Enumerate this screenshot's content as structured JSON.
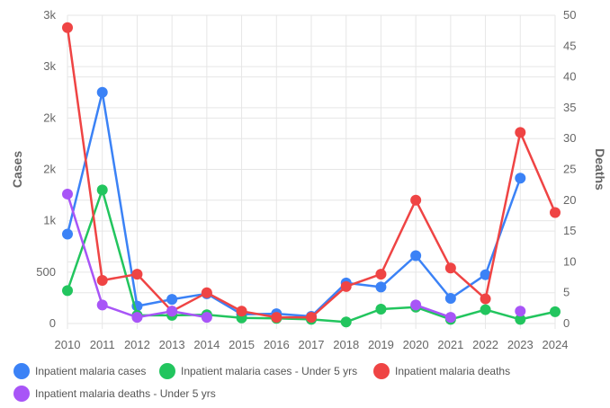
{
  "chart_data": {
    "type": "line",
    "x": [
      "2010",
      "2011",
      "2012",
      "2013",
      "2014",
      "2015",
      "2016",
      "2017",
      "2018",
      "2019",
      "2020",
      "2021",
      "2022",
      "2023",
      "2024"
    ],
    "y_left": {
      "label": "Cases",
      "ylim": [
        0,
        3000
      ],
      "tick_values": [
        0,
        500,
        1000,
        1500,
        2000,
        2500,
        3000
      ],
      "tick_labels": [
        "0",
        "500",
        "1k",
        "2k",
        "2k",
        "3k",
        "3k"
      ]
    },
    "y_right": {
      "label": "Deaths",
      "ylim": [
        0,
        50
      ],
      "tick_values": [
        0,
        5,
        10,
        15,
        20,
        25,
        30,
        35,
        40,
        45,
        50
      ],
      "tick_labels": [
        "0",
        "5",
        "10",
        "15",
        "20",
        "25",
        "30",
        "35",
        "40",
        "45",
        "50"
      ]
    },
    "grid": true,
    "legend_position": "bottom",
    "series": [
      {
        "name": "Inpatient malaria cases",
        "axis": "left",
        "color": "#3b82f6",
        "values": [
          870,
          2250,
          170,
          235,
          290,
          90,
          95,
          70,
          395,
          355,
          660,
          245,
          475,
          1415,
          null
        ]
      },
      {
        "name": "Inpatient malaria cases - Under 5 yrs",
        "axis": "left",
        "color": "#22c55e",
        "values": [
          320,
          1300,
          80,
          80,
          85,
          55,
          50,
          40,
          15,
          140,
          160,
          40,
          135,
          40,
          115
        ]
      },
      {
        "name": "Inpatient malaria deaths",
        "axis": "right",
        "color": "#ef4444",
        "values": [
          48,
          7,
          8,
          2,
          5,
          2,
          1,
          1,
          6,
          8,
          20,
          9,
          4,
          31,
          18
        ]
      },
      {
        "name": "Inpatient malaria deaths - Under 5 yrs",
        "axis": "right",
        "color": "#a855f7",
        "values": [
          21,
          3,
          1,
          2,
          1,
          null,
          null,
          null,
          null,
          null,
          3,
          1,
          null,
          2,
          null
        ]
      }
    ]
  }
}
